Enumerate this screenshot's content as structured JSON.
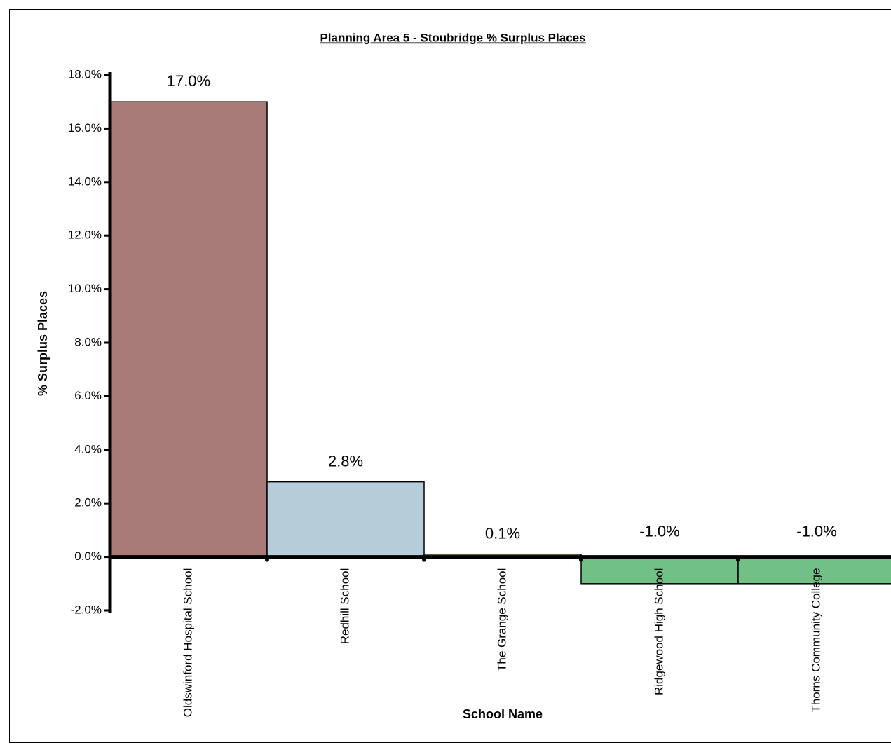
{
  "chart_data": {
    "type": "bar",
    "title": "Planning Area 5 - Stoubridge %  Surplus Places",
    "y_label": "% Surplus Places",
    "x_label": "School Name",
    "categories": [
      "Oldswinford Hospital School",
      "Redhill School",
      "The Grange School",
      "Ridgewood High School",
      "Thorns Community College"
    ],
    "values": [
      17.0,
      2.8,
      0.1,
      -1.0,
      -1.0
    ],
    "value_labels": [
      "17.0%",
      "2.8%",
      "0.1%",
      "-1.0%",
      "-1.0%"
    ],
    "colors": [
      "#a87a78",
      "#b4cdd8",
      "#c9b98a",
      "#70c087",
      "#70c087"
    ],
    "ylim": [
      -2,
      18
    ],
    "yticks": [
      {
        "value": -2,
        "label": "-2.0%"
      },
      {
        "value": 0,
        "label": "0.0%"
      },
      {
        "value": 2,
        "label": "2.0%"
      },
      {
        "value": 4,
        "label": "4.0%"
      },
      {
        "value": 6,
        "label": "6.0%"
      },
      {
        "value": 8,
        "label": "8.0%"
      },
      {
        "value": 10,
        "label": "10.0%"
      },
      {
        "value": 12,
        "label": "12.0%"
      },
      {
        "value": 14,
        "label": "14.0%"
      },
      {
        "value": 16,
        "label": "16.0%"
      },
      {
        "value": 18,
        "label": "18.0%"
      }
    ],
    "grid": false
  }
}
